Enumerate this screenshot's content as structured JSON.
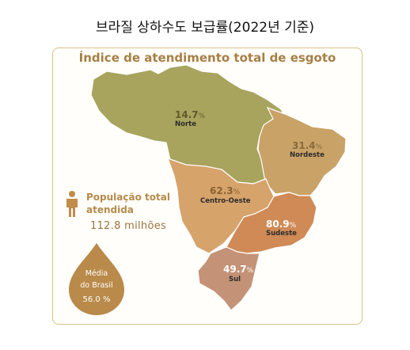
{
  "page": {
    "title": "브라질 상하수도 보급률(2022년 기준)"
  },
  "infographic": {
    "title": "Índice de atendimento total de esgoto",
    "population": {
      "label": "População total atendida",
      "value": "112.8 milhões"
    },
    "national_average": {
      "label_line1": "Média",
      "label_line2": "do Brasil",
      "value": "56.0 %"
    }
  },
  "regions": [
    {
      "key": "norte",
      "name": "Norte",
      "value": 14.7,
      "pct_text": "14.7",
      "unit": "%",
      "color": "#a8a45e",
      "pct_color": "#5f5a2b"
    },
    {
      "key": "nordeste",
      "name": "Nordeste",
      "value": 31.4,
      "pct_text": "31.4",
      "unit": "%",
      "color": "#c9a267",
      "pct_color": "#8a6a3a"
    },
    {
      "key": "centro_oeste",
      "name": "Centro-Oeste",
      "value": 62.3,
      "pct_text": "62.3",
      "unit": "%",
      "color": "#d6a36b",
      "pct_color": "#8a6232"
    },
    {
      "key": "sudeste",
      "name": "Sudeste",
      "value": 80.9,
      "pct_text": "80.9",
      "unit": "%",
      "color": "#cf8a56",
      "pct_color": "#ffffff"
    },
    {
      "key": "sul",
      "name": "Sul",
      "value": 49.7,
      "pct_text": "49.7",
      "unit": "%",
      "color": "#c49276",
      "pct_color": "#ffffff"
    }
  ],
  "colors": {
    "accent": "#a77f45",
    "border": "#d9c08a",
    "drop": "#b98a4a",
    "person_icon": "#c08d4a"
  },
  "icons": {
    "population": "person-icon",
    "average": "drop-shape"
  }
}
